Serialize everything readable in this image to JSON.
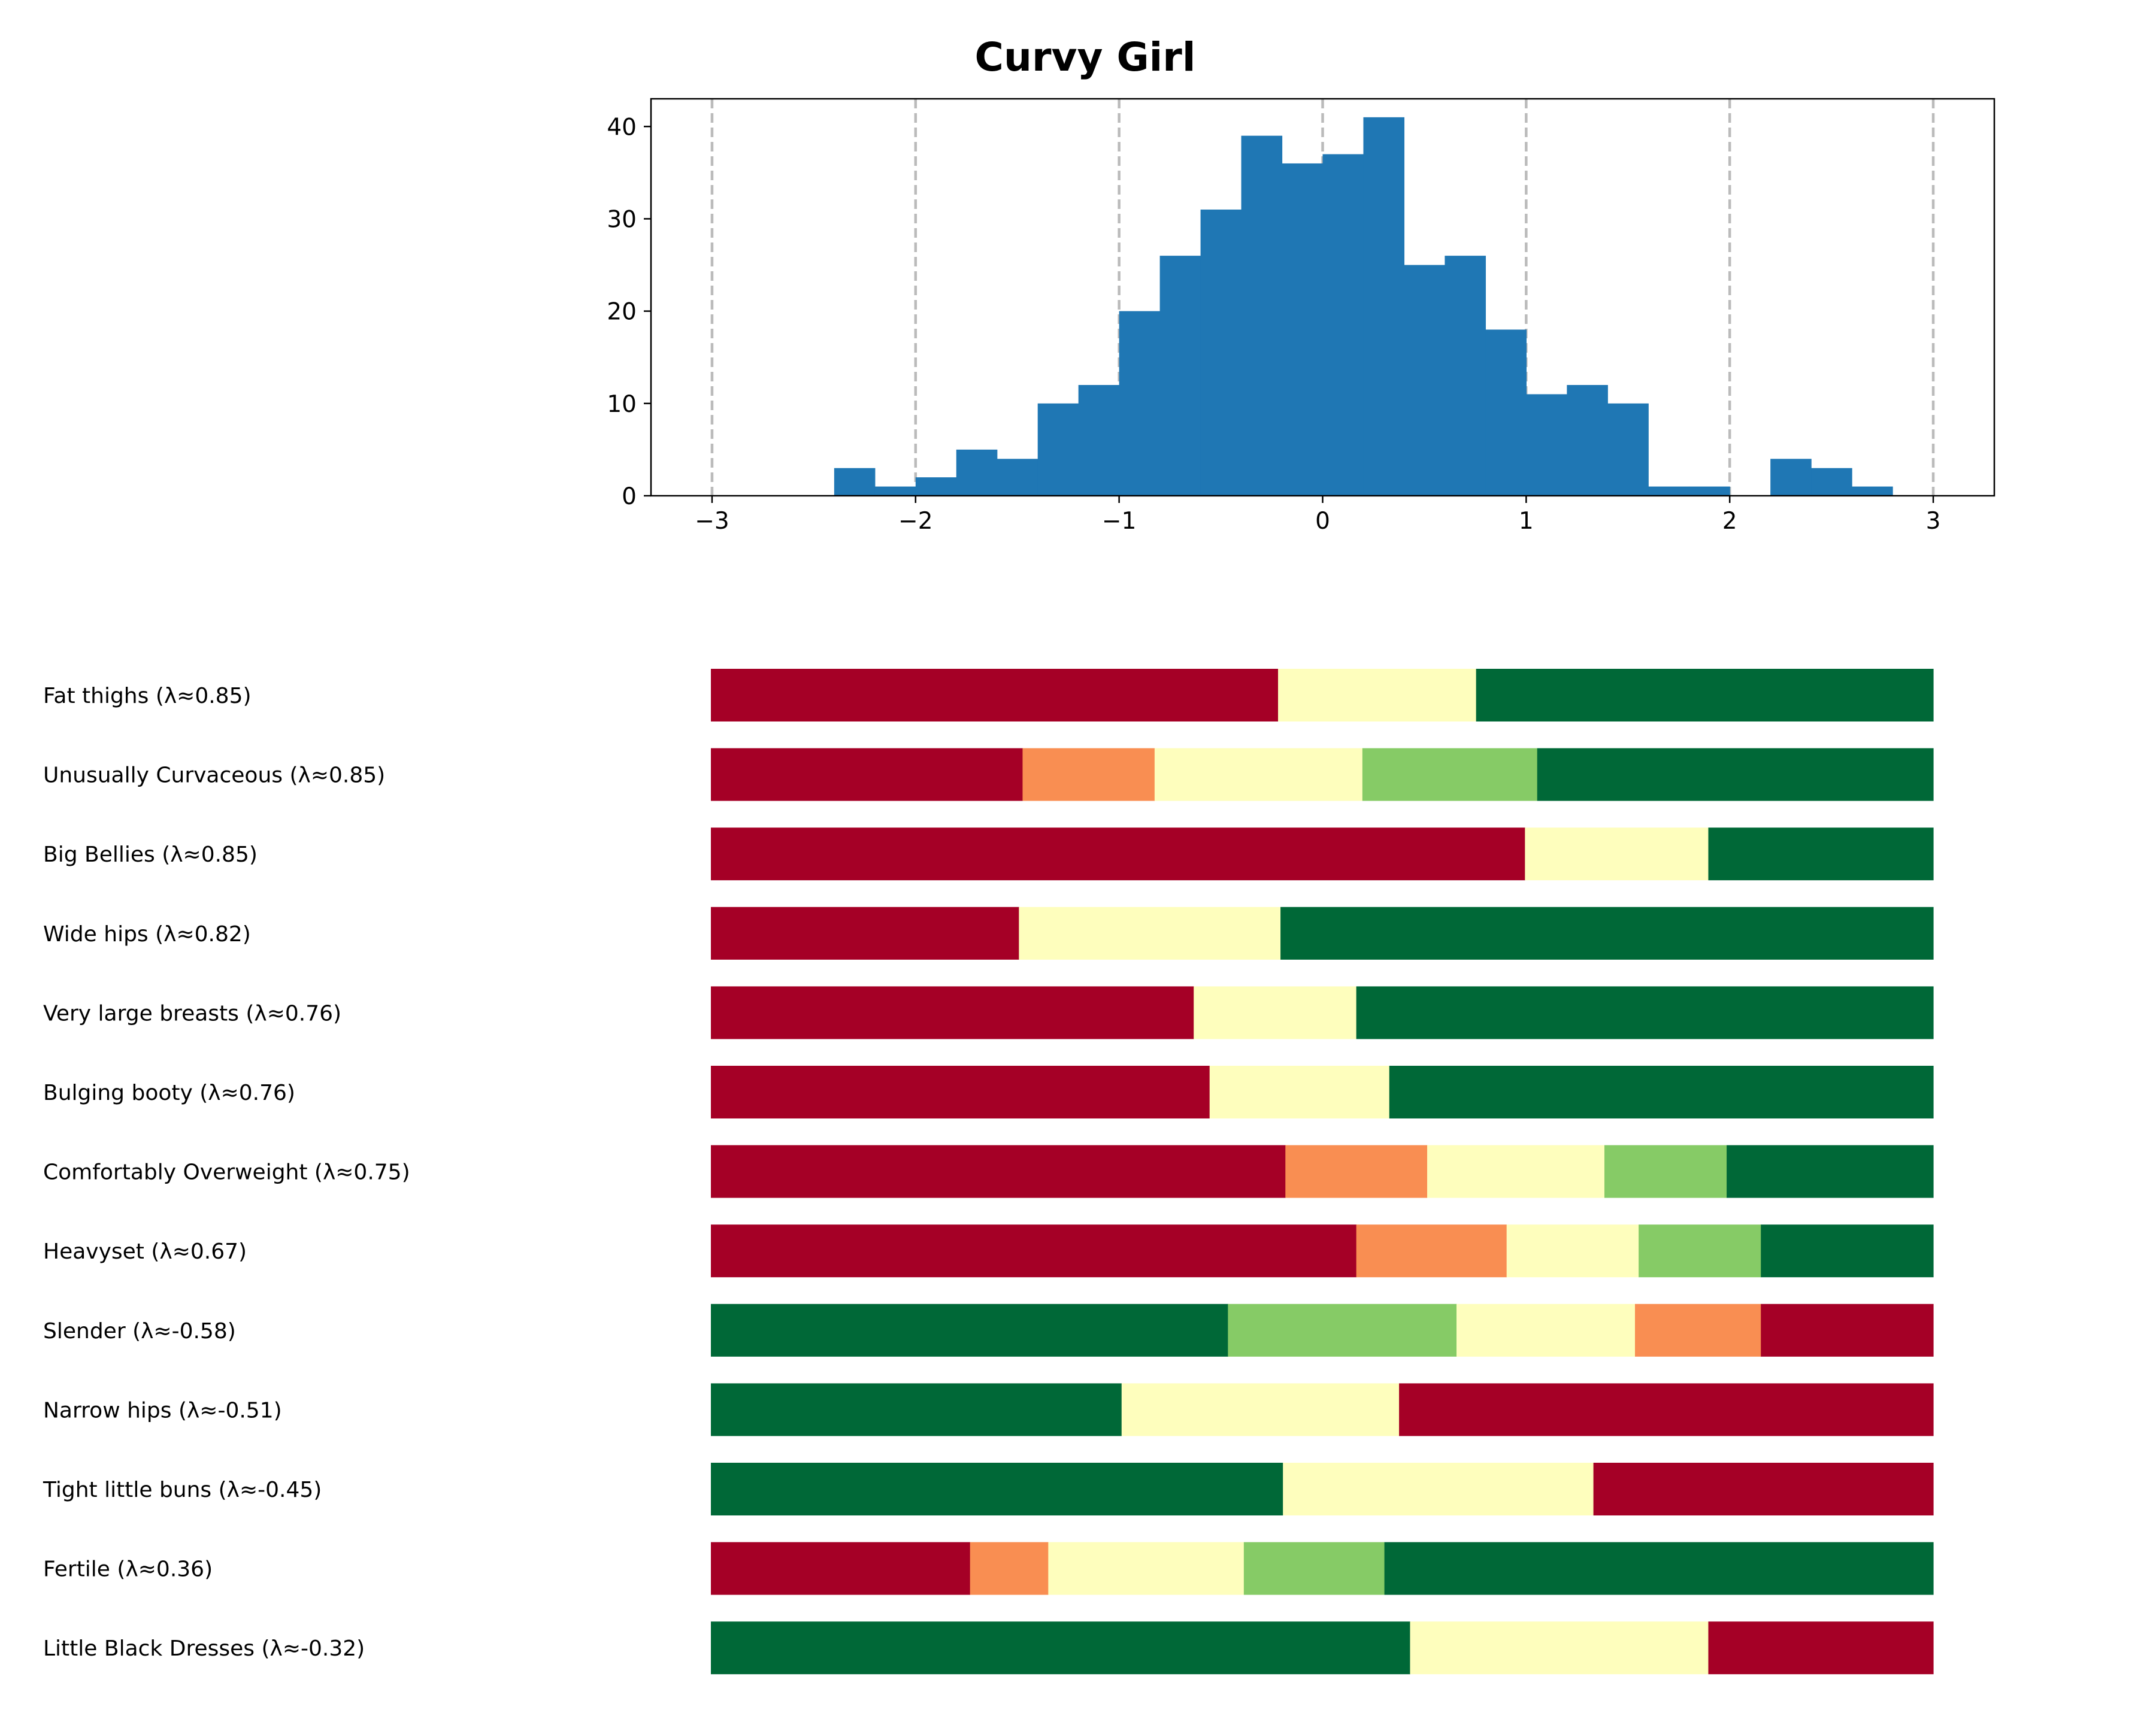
{
  "chart_data": [
    {
      "type": "bar",
      "title": "Curvy Girl",
      "xlabel": "",
      "ylabel": "",
      "xlim": [
        -3.3,
        3.3
      ],
      "ylim": [
        0,
        43
      ],
      "xticks": [
        -3,
        -2,
        -1,
        0,
        1,
        2,
        3
      ],
      "xtick_labels": [
        "−3",
        "−2",
        "−1",
        "0",
        "1",
        "2",
        "3"
      ],
      "yticks": [
        0,
        10,
        20,
        30,
        40
      ],
      "ytick_labels": [
        "0",
        "10",
        "20",
        "30",
        "40"
      ],
      "grid": "vertical dashed lines at x ticks",
      "bar_color": "#1f77b4",
      "grid_color": "#bbbbbb",
      "bins": [
        {
          "x0": -2.4,
          "x1": -2.2,
          "count": 3
        },
        {
          "x0": -2.2,
          "x1": -2.0,
          "count": 1
        },
        {
          "x0": -2.0,
          "x1": -1.8,
          "count": 2
        },
        {
          "x0": -1.8,
          "x1": -1.6,
          "count": 5
        },
        {
          "x0": -1.6,
          "x1": -1.4,
          "count": 4
        },
        {
          "x0": -1.4,
          "x1": -1.2,
          "count": 10
        },
        {
          "x0": -1.2,
          "x1": -1.0,
          "count": 12
        },
        {
          "x0": -1.0,
          "x1": -0.8,
          "count": 20
        },
        {
          "x0": -0.8,
          "x1": -0.6,
          "count": 26
        },
        {
          "x0": -0.6,
          "x1": -0.4,
          "count": 31
        },
        {
          "x0": -0.4,
          "x1": -0.2,
          "count": 39
        },
        {
          "x0": -0.2,
          "x1": 0.0,
          "count": 36
        },
        {
          "x0": 0.0,
          "x1": 0.2,
          "count": 37
        },
        {
          "x0": 0.2,
          "x1": 0.4,
          "count": 41
        },
        {
          "x0": 0.4,
          "x1": 0.6,
          "count": 25
        },
        {
          "x0": 0.6,
          "x1": 0.8,
          "count": 26
        },
        {
          "x0": 0.8,
          "x1": 1.0,
          "count": 18
        },
        {
          "x0": 1.0,
          "x1": 1.2,
          "count": 11
        },
        {
          "x0": 1.2,
          "x1": 1.4,
          "count": 12
        },
        {
          "x0": 1.4,
          "x1": 1.6,
          "count": 10
        },
        {
          "x0": 1.6,
          "x1": 1.8,
          "count": 1
        },
        {
          "x0": 1.8,
          "x1": 2.0,
          "count": 1
        },
        {
          "x0": 2.0,
          "x1": 2.2,
          "count": 0
        },
        {
          "x0": 2.2,
          "x1": 2.4,
          "count": 4
        },
        {
          "x0": 2.4,
          "x1": 2.6,
          "count": 3
        },
        {
          "x0": 2.6,
          "x1": 2.8,
          "count": 1
        }
      ]
    },
    {
      "type": "bar",
      "orientation": "horizontal-stacked",
      "xlim": [
        0,
        1
      ],
      "colors": {
        "1": "#a50026",
        "2": "#f98e52",
        "3": "#fefebd",
        "4": "#86cb66",
        "5": "#006837"
      },
      "rows": [
        {
          "label": "Fat thighs (λ≈0.85)",
          "segments": [
            {
              "level": 1,
              "value": 0.464
            },
            {
              "level": 3,
              "value": 0.162
            },
            {
              "level": 5,
              "value": 0.374
            }
          ]
        },
        {
          "label": "Unusually Curvaceous (λ≈0.85)",
          "segments": [
            {
              "level": 1,
              "value": 0.255
            },
            {
              "level": 2,
              "value": 0.108
            },
            {
              "level": 3,
              "value": 0.17
            },
            {
              "level": 4,
              "value": 0.143
            },
            {
              "level": 5,
              "value": 0.324
            }
          ]
        },
        {
          "label": "Big Bellies (λ≈0.85)",
          "segments": [
            {
              "level": 1,
              "value": 0.666
            },
            {
              "level": 3,
              "value": 0.15
            },
            {
              "level": 5,
              "value": 0.184
            }
          ]
        },
        {
          "label": "Wide hips (λ≈0.82)",
          "segments": [
            {
              "level": 1,
              "value": 0.252
            },
            {
              "level": 3,
              "value": 0.214
            },
            {
              "level": 5,
              "value": 0.534
            }
          ]
        },
        {
          "label": "Very large breasts (λ≈0.76)",
          "segments": [
            {
              "level": 1,
              "value": 0.395
            },
            {
              "level": 3,
              "value": 0.133
            },
            {
              "level": 5,
              "value": 0.472
            }
          ]
        },
        {
          "label": "Bulging booty (λ≈0.76)",
          "segments": [
            {
              "level": 1,
              "value": 0.408
            },
            {
              "level": 3,
              "value": 0.147
            },
            {
              "level": 5,
              "value": 0.445
            }
          ]
        },
        {
          "label": "Comfortably Overweight (λ≈0.75)",
          "segments": [
            {
              "level": 1,
              "value": 0.47
            },
            {
              "level": 2,
              "value": 0.116
            },
            {
              "level": 3,
              "value": 0.145
            },
            {
              "level": 4,
              "value": 0.1
            },
            {
              "level": 5,
              "value": 0.169
            }
          ]
        },
        {
          "label": "Heavyset (λ≈0.67)",
          "segments": [
            {
              "level": 1,
              "value": 0.528
            },
            {
              "level": 2,
              "value": 0.123
            },
            {
              "level": 3,
              "value": 0.108
            },
            {
              "level": 4,
              "value": 0.1
            },
            {
              "level": 5,
              "value": 0.141
            }
          ]
        },
        {
          "label": "Slender (λ≈-0.58)",
          "segments": [
            {
              "level": 5,
              "value": 0.423
            },
            {
              "level": 4,
              "value": 0.187
            },
            {
              "level": 3,
              "value": 0.146
            },
            {
              "level": 2,
              "value": 0.103
            },
            {
              "level": 1,
              "value": 0.141
            }
          ]
        },
        {
          "label": "Narrow hips (λ≈-0.51)",
          "segments": [
            {
              "level": 5,
              "value": 0.336
            },
            {
              "level": 3,
              "value": 0.227
            },
            {
              "level": 1,
              "value": 0.437
            }
          ]
        },
        {
          "label": "Tight little buns (λ≈-0.45)",
          "segments": [
            {
              "level": 5,
              "value": 0.468
            },
            {
              "level": 3,
              "value": 0.254
            },
            {
              "level": 1,
              "value": 0.278
            }
          ]
        },
        {
          "label": "Fertile (λ≈0.36)",
          "segments": [
            {
              "level": 1,
              "value": 0.212
            },
            {
              "level": 2,
              "value": 0.064
            },
            {
              "level": 3,
              "value": 0.16
            },
            {
              "level": 4,
              "value": 0.115
            },
            {
              "level": 5,
              "value": 0.449
            }
          ]
        },
        {
          "label": "Little Black Dresses (λ≈-0.32)",
          "segments": [
            {
              "level": 5,
              "value": 0.572
            },
            {
              "level": 3,
              "value": 0.244
            },
            {
              "level": 1,
              "value": 0.184
            }
          ]
        }
      ]
    }
  ]
}
